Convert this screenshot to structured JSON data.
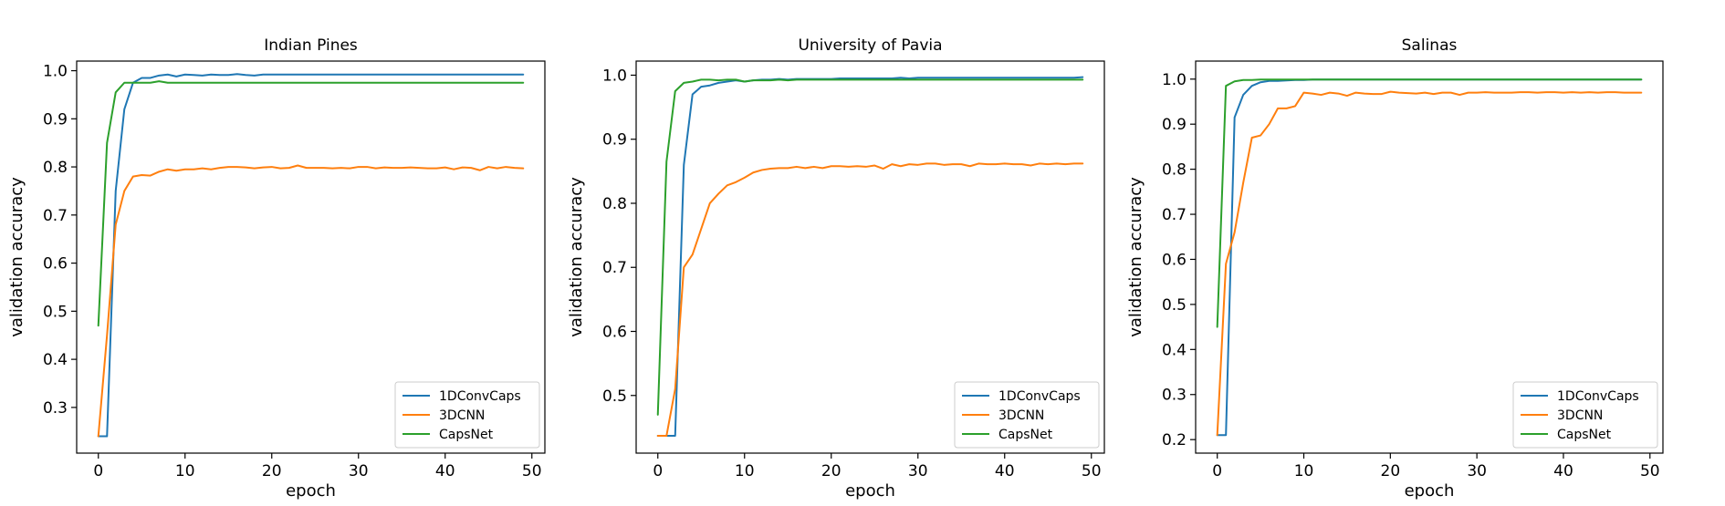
{
  "chart_data": [
    {
      "type": "line",
      "title": "Indian Pines",
      "xlabel": "epoch",
      "ylabel": "validation accuracy",
      "xlim": [
        -2.5,
        51.5
      ],
      "ylim": [
        0.205,
        1.02
      ],
      "xticks": [
        0,
        10,
        20,
        30,
        40,
        50
      ],
      "yticks": [
        0.3,
        0.4,
        0.5,
        0.6,
        0.7,
        0.8,
        0.9,
        1.0
      ],
      "ytick_labels": [
        "0.3",
        "0.4",
        "0.5",
        "0.6",
        "0.7",
        "0.8",
        "0.9",
        "1.0"
      ],
      "legend": "lower-right",
      "grid": false,
      "series": [
        {
          "name": "1DConvCaps",
          "color": "#1f77b4",
          "values": [
            0.24,
            0.24,
            0.75,
            0.92,
            0.975,
            0.985,
            0.985,
            0.99,
            0.992,
            0.988,
            0.992,
            0.991,
            0.99,
            0.992,
            0.991,
            0.991,
            0.993,
            0.991,
            0.99,
            0.992,
            0.992,
            0.992,
            0.992,
            0.992,
            0.992,
            0.992,
            0.992,
            0.992,
            0.992,
            0.992,
            0.992,
            0.992,
            0.992,
            0.992,
            0.992,
            0.992,
            0.992,
            0.992,
            0.992,
            0.992,
            0.992,
            0.992,
            0.992,
            0.992,
            0.992,
            0.992,
            0.992,
            0.992,
            0.992,
            0.992
          ]
        },
        {
          "name": "3DCNN",
          "color": "#ff7f0e",
          "values": [
            0.24,
            0.45,
            0.68,
            0.75,
            0.78,
            0.783,
            0.782,
            0.79,
            0.795,
            0.792,
            0.795,
            0.795,
            0.797,
            0.795,
            0.798,
            0.8,
            0.8,
            0.799,
            0.797,
            0.799,
            0.8,
            0.797,
            0.798,
            0.803,
            0.798,
            0.798,
            0.798,
            0.797,
            0.798,
            0.797,
            0.8,
            0.8,
            0.797,
            0.799,
            0.798,
            0.798,
            0.799,
            0.798,
            0.797,
            0.797,
            0.799,
            0.795,
            0.799,
            0.798,
            0.793,
            0.8,
            0.797,
            0.8,
            0.798,
            0.797
          ]
        },
        {
          "name": "CapsNet",
          "color": "#2ca02c",
          "values": [
            0.47,
            0.85,
            0.955,
            0.975,
            0.975,
            0.975,
            0.975,
            0.978,
            0.975,
            0.975,
            0.975,
            0.975,
            0.975,
            0.975,
            0.975,
            0.975,
            0.975,
            0.975,
            0.975,
            0.975,
            0.975,
            0.975,
            0.975,
            0.975,
            0.975,
            0.975,
            0.975,
            0.975,
            0.975,
            0.975,
            0.975,
            0.975,
            0.975,
            0.975,
            0.975,
            0.975,
            0.975,
            0.975,
            0.975,
            0.975,
            0.975,
            0.975,
            0.975,
            0.975,
            0.975,
            0.975,
            0.975,
            0.975,
            0.975,
            0.975
          ]
        }
      ]
    },
    {
      "type": "line",
      "title": "University of Pavia",
      "xlabel": "epoch",
      "ylabel": "validation accuracy",
      "xlim": [
        -2.5,
        51.5
      ],
      "ylim": [
        0.41,
        1.022
      ],
      "xticks": [
        0,
        10,
        20,
        30,
        40,
        50
      ],
      "yticks": [
        0.5,
        0.6,
        0.7,
        0.8,
        0.9,
        1.0
      ],
      "ytick_labels": [
        "0.5",
        "0.6",
        "0.7",
        "0.8",
        "0.9",
        "1.0"
      ],
      "legend": "lower-right",
      "grid": false,
      "series": [
        {
          "name": "1DConvCaps",
          "color": "#1f77b4",
          "values": [
            0.437,
            0.437,
            0.437,
            0.86,
            0.97,
            0.982,
            0.984,
            0.988,
            0.99,
            0.992,
            0.99,
            0.992,
            0.993,
            0.993,
            0.994,
            0.993,
            0.994,
            0.994,
            0.994,
            0.994,
            0.994,
            0.995,
            0.995,
            0.995,
            0.995,
            0.995,
            0.995,
            0.995,
            0.996,
            0.995,
            0.996,
            0.996,
            0.996,
            0.996,
            0.996,
            0.996,
            0.996,
            0.996,
            0.996,
            0.996,
            0.996,
            0.996,
            0.996,
            0.996,
            0.996,
            0.996,
            0.996,
            0.996,
            0.996,
            0.997
          ]
        },
        {
          "name": "3DCNN",
          "color": "#ff7f0e",
          "values": [
            0.437,
            0.437,
            0.51,
            0.7,
            0.72,
            0.76,
            0.8,
            0.815,
            0.828,
            0.833,
            0.84,
            0.848,
            0.852,
            0.854,
            0.855,
            0.855,
            0.857,
            0.855,
            0.857,
            0.855,
            0.858,
            0.858,
            0.857,
            0.858,
            0.857,
            0.859,
            0.854,
            0.861,
            0.858,
            0.861,
            0.86,
            0.862,
            0.862,
            0.86,
            0.861,
            0.861,
            0.858,
            0.862,
            0.861,
            0.861,
            0.862,
            0.861,
            0.861,
            0.859,
            0.862,
            0.861,
            0.862,
            0.861,
            0.862,
            0.862
          ]
        },
        {
          "name": "CapsNet",
          "color": "#2ca02c",
          "values": [
            0.47,
            0.865,
            0.975,
            0.988,
            0.99,
            0.993,
            0.993,
            0.992,
            0.993,
            0.993,
            0.99,
            0.992,
            0.992,
            0.992,
            0.993,
            0.992,
            0.993,
            0.993,
            0.993,
            0.993,
            0.993,
            0.993,
            0.993,
            0.993,
            0.993,
            0.993,
            0.993,
            0.993,
            0.993,
            0.993,
            0.993,
            0.993,
            0.993,
            0.993,
            0.993,
            0.993,
            0.993,
            0.993,
            0.993,
            0.993,
            0.993,
            0.993,
            0.993,
            0.993,
            0.993,
            0.993,
            0.993,
            0.993,
            0.993,
            0.993
          ]
        }
      ]
    },
    {
      "type": "line",
      "title": "Salinas",
      "xlabel": "epoch",
      "ylabel": "validation accuracy",
      "xlim": [
        -2.5,
        51.5
      ],
      "ylim": [
        0.17,
        1.04
      ],
      "xticks": [
        0,
        10,
        20,
        30,
        40,
        50
      ],
      "yticks": [
        0.2,
        0.3,
        0.4,
        0.5,
        0.6,
        0.7,
        0.8,
        0.9,
        1.0
      ],
      "ytick_labels": [
        "0.2",
        "0.3",
        "0.4",
        "0.5",
        "0.6",
        "0.7",
        "0.8",
        "0.9",
        "1.0"
      ],
      "legend": "lower-right",
      "grid": false,
      "series": [
        {
          "name": "1DConvCaps",
          "color": "#1f77b4",
          "values": [
            0.21,
            0.21,
            0.915,
            0.965,
            0.985,
            0.993,
            0.996,
            0.996,
            0.997,
            0.998,
            0.998,
            0.999,
            0.999,
            0.999,
            0.999,
            0.999,
            0.999,
            0.999,
            0.999,
            0.999,
            0.999,
            0.999,
            0.999,
            0.999,
            0.999,
            0.999,
            0.999,
            0.999,
            0.999,
            0.999,
            0.999,
            0.999,
            0.999,
            0.999,
            0.999,
            0.999,
            0.999,
            0.999,
            0.999,
            0.999,
            0.999,
            0.999,
            0.999,
            0.999,
            0.999,
            0.999,
            0.999,
            0.999,
            0.999,
            0.999
          ]
        },
        {
          "name": "3DCNN",
          "color": "#ff7f0e",
          "values": [
            0.21,
            0.59,
            0.66,
            0.77,
            0.87,
            0.875,
            0.9,
            0.935,
            0.935,
            0.94,
            0.97,
            0.968,
            0.965,
            0.97,
            0.968,
            0.963,
            0.97,
            0.968,
            0.967,
            0.967,
            0.972,
            0.97,
            0.969,
            0.968,
            0.97,
            0.967,
            0.97,
            0.97,
            0.965,
            0.97,
            0.97,
            0.971,
            0.97,
            0.97,
            0.97,
            0.971,
            0.971,
            0.97,
            0.971,
            0.971,
            0.97,
            0.971,
            0.97,
            0.971,
            0.97,
            0.971,
            0.971,
            0.97,
            0.97,
            0.97
          ]
        },
        {
          "name": "CapsNet",
          "color": "#2ca02c",
          "values": [
            0.45,
            0.985,
            0.995,
            0.998,
            0.998,
            0.999,
            0.999,
            0.999,
            0.999,
            0.999,
            0.999,
            0.999,
            0.999,
            0.999,
            0.999,
            0.999,
            0.999,
            0.999,
            0.999,
            0.999,
            0.999,
            0.999,
            0.999,
            0.999,
            0.999,
            0.999,
            0.999,
            0.999,
            0.999,
            0.999,
            0.999,
            0.999,
            0.999,
            0.999,
            0.999,
            0.999,
            0.999,
            0.999,
            0.999,
            0.999,
            0.999,
            0.999,
            0.999,
            0.999,
            0.999,
            0.999,
            0.999,
            0.999,
            0.999,
            0.999
          ]
        }
      ]
    }
  ]
}
